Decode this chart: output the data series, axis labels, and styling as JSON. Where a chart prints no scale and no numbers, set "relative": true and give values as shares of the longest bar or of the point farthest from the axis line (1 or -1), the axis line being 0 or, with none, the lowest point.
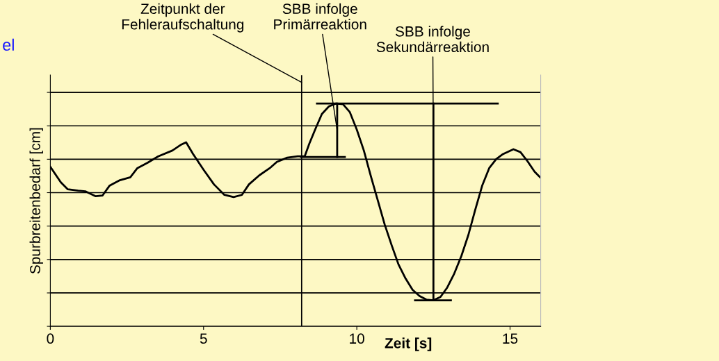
{
  "chart_data": {
    "type": "line",
    "relative": true,
    "xlabel": "Zeit [s]",
    "ylabel": "Spurbreitenbedarf [cm]",
    "xlim": [
      0,
      16
    ],
    "xticks": [
      0,
      5,
      10,
      15
    ],
    "grid": "y",
    "legend": false,
    "tick_labels": "x",
    "series": [
      {
        "color": "#000000",
        "x": [
          0,
          0.34,
          0.57,
          0.91,
          1.14,
          1.48,
          1.7,
          1.93,
          2.27,
          2.61,
          2.84,
          3.18,
          3.52,
          3.98,
          4.25,
          4.43,
          4.66,
          5.0,
          5.34,
          5.68,
          5.98,
          6.25,
          6.48,
          6.82,
          7.16,
          7.39,
          7.73,
          8.07,
          8.3,
          8.45,
          8.64,
          8.86,
          9.09,
          9.32,
          9.55,
          9.77,
          10.0,
          10.23,
          10.45,
          10.68,
          10.91,
          11.14,
          11.36,
          11.59,
          11.82,
          12.05,
          12.27,
          12.5,
          12.73,
          12.95,
          13.18,
          13.41,
          13.64,
          13.86,
          14.09,
          14.32,
          14.55,
          14.77,
          15.11,
          15.34,
          15.57,
          15.8,
          15.98
        ],
        "values": [
          0.716,
          0.647,
          0.615,
          0.609,
          0.606,
          0.584,
          0.587,
          0.631,
          0.656,
          0.669,
          0.71,
          0.735,
          0.763,
          0.789,
          0.814,
          0.826,
          0.773,
          0.703,
          0.637,
          0.59,
          0.58,
          0.59,
          0.637,
          0.678,
          0.71,
          0.738,
          0.757,
          0.763,
          0.763,
          0.82,
          0.883,
          0.953,
          0.987,
          1.0,
          0.997,
          0.962,
          0.883,
          0.789,
          0.678,
          0.568,
          0.457,
          0.363,
          0.278,
          0.215,
          0.164,
          0.136,
          0.12,
          0.117,
          0.132,
          0.174,
          0.237,
          0.315,
          0.41,
          0.521,
          0.631,
          0.71,
          0.751,
          0.773,
          0.795,
          0.782,
          0.741,
          0.694,
          0.669
        ]
      },
      {
        "color": "#000000",
        "x": [
          8.7,
          14.6
        ],
        "values": [
          1.0,
          1.0
        ]
      },
      {
        "color": "#000000",
        "x": [
          8.18,
          9.61
        ],
        "values": [
          0.76,
          0.76
        ]
      },
      {
        "color": "#000000",
        "x": [
          11.9,
          13.07
        ],
        "values": [
          0.117,
          0.117
        ]
      },
      {
        "color": "#000000",
        "x": [
          9.36,
          9.36
        ],
        "values": [
          1.0,
          0.76
        ]
      },
      {
        "color": "#000000",
        "x": [
          12.5,
          12.5
        ],
        "values": [
          1.0,
          0.117
        ]
      }
    ],
    "ref_lines": [
      {
        "axis": "x",
        "value": 8.2,
        "color": "#000000"
      }
    ],
    "annotations": [
      {
        "text": "Zeitpunkt der\nFehleraufschaltung",
        "x": 8.2,
        "y": 1.095
      },
      {
        "text": "SBB infolge\nPrimärreaktion",
        "x": 9.36,
        "y": 0.88
      },
      {
        "text": "SBB infolge\nSekundärreaktion",
        "x": 12.5,
        "y": 0.757
      },
      "el"
    ]
  }
}
